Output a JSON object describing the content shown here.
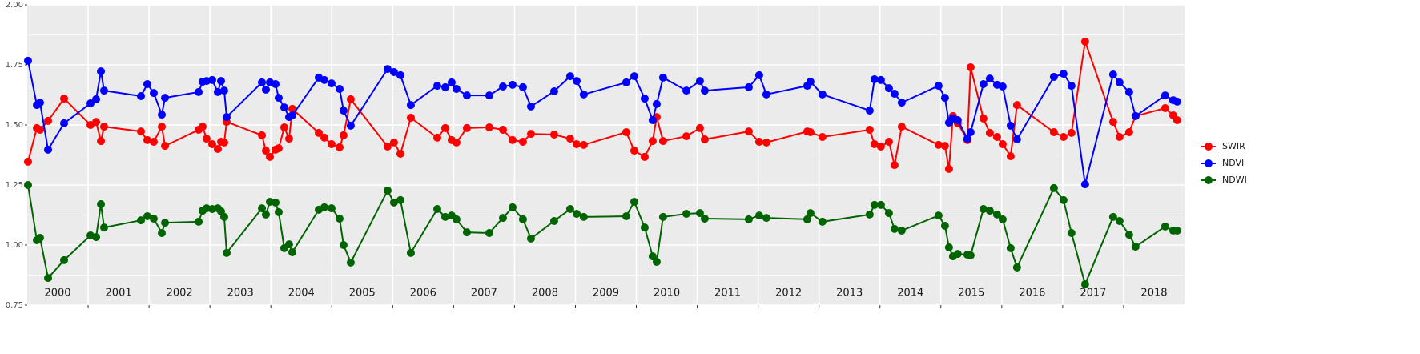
{
  "chart_data": {
    "type": "line",
    "x": [
      2000.013,
      2000.158,
      2000.21,
      2000.342,
      2000.605,
      2001.039,
      2001.131,
      2001.21,
      2001.262,
      2001.867,
      2001.972,
      2002.077,
      2002.209,
      2002.262,
      2002.814,
      2002.879,
      2002.945,
      2003.037,
      2003.129,
      2003.182,
      2003.234,
      2003.274,
      2003.853,
      2003.918,
      2003.984,
      2004.076,
      2004.128,
      2004.22,
      2004.299,
      2004.352,
      2004.786,
      2004.878,
      2004.996,
      2005.128,
      2005.193,
      2005.311,
      2005.916,
      2006.021,
      2006.127,
      2006.298,
      2006.732,
      2006.863,
      2006.968,
      2007.047,
      2007.218,
      2007.586,
      2007.81,
      2007.968,
      2008.138,
      2008.27,
      2008.651,
      2008.914,
      2009.02,
      2009.137,
      2009.834,
      2009.966,
      2010.137,
      2010.268,
      2010.334,
      2010.439,
      2010.821,
      2011.044,
      2011.123,
      2011.846,
      2012.017,
      2012.135,
      2012.806,
      2012.858,
      2013.055,
      2013.831,
      2013.91,
      2014.015,
      2014.147,
      2014.239,
      2014.357,
      2014.962,
      2015.067,
      2015.133,
      2015.198,
      2015.277,
      2015.435,
      2015.488,
      2015.698,
      2015.803,
      2015.922,
      2016.014,
      2016.145,
      2016.25,
      2016.855,
      2017.013,
      2017.144,
      2017.368,
      2017.828,
      2017.933,
      2018.091,
      2018.196,
      2018.682,
      2018.814,
      2018.879
    ],
    "series": [
      {
        "name": "SWIR",
        "color": "#ff0000",
        "values": [
          1.347,
          1.487,
          1.48,
          1.517,
          1.61,
          1.5,
          1.513,
          1.433,
          1.493,
          1.473,
          1.437,
          1.43,
          1.493,
          1.413,
          1.48,
          1.493,
          1.443,
          1.42,
          1.4,
          1.43,
          1.427,
          1.513,
          1.457,
          1.393,
          1.367,
          1.397,
          1.403,
          1.49,
          1.443,
          1.567,
          1.467,
          1.447,
          1.42,
          1.407,
          1.457,
          1.607,
          1.41,
          1.427,
          1.38,
          1.53,
          1.447,
          1.487,
          1.437,
          1.427,
          1.487,
          1.49,
          1.48,
          1.437,
          1.43,
          1.463,
          1.46,
          1.443,
          1.42,
          1.417,
          1.47,
          1.393,
          1.367,
          1.433,
          1.533,
          1.433,
          1.453,
          1.487,
          1.44,
          1.473,
          1.43,
          1.427,
          1.473,
          1.47,
          1.45,
          1.48,
          1.42,
          1.41,
          1.43,
          1.333,
          1.493,
          1.417,
          1.413,
          1.317,
          1.537,
          1.507,
          1.437,
          1.74,
          1.527,
          1.467,
          1.45,
          1.42,
          1.37,
          1.583,
          1.47,
          1.45,
          1.467,
          1.847,
          1.513,
          1.45,
          1.47,
          1.537,
          1.57,
          1.54,
          1.52
        ]
      },
      {
        "name": "NDVI",
        "color": "#0000ff",
        "values": [
          1.767,
          1.583,
          1.593,
          1.397,
          1.507,
          1.59,
          1.607,
          1.723,
          1.643,
          1.62,
          1.67,
          1.633,
          1.543,
          1.613,
          1.637,
          1.68,
          1.683,
          1.687,
          1.637,
          1.683,
          1.643,
          1.533,
          1.677,
          1.647,
          1.677,
          1.67,
          1.613,
          1.573,
          1.533,
          1.54,
          1.697,
          1.687,
          1.673,
          1.65,
          1.56,
          1.497,
          1.733,
          1.72,
          1.707,
          1.583,
          1.663,
          1.657,
          1.677,
          1.65,
          1.623,
          1.623,
          1.66,
          1.667,
          1.657,
          1.577,
          1.64,
          1.703,
          1.683,
          1.627,
          1.677,
          1.703,
          1.61,
          1.52,
          1.587,
          1.697,
          1.643,
          1.683,
          1.643,
          1.657,
          1.707,
          1.627,
          1.663,
          1.68,
          1.627,
          1.56,
          1.69,
          1.687,
          1.653,
          1.63,
          1.593,
          1.663,
          1.613,
          1.51,
          1.527,
          1.52,
          1.443,
          1.47,
          1.67,
          1.693,
          1.667,
          1.66,
          1.497,
          1.44,
          1.7,
          1.713,
          1.663,
          1.253,
          1.71,
          1.677,
          1.637,
          1.537,
          1.623,
          1.603,
          1.597
        ]
      },
      {
        "name": "NDWI",
        "color": "#006400",
        "values": [
          1.25,
          1.02,
          1.03,
          0.863,
          0.937,
          1.04,
          1.033,
          1.17,
          1.073,
          1.103,
          1.12,
          1.11,
          1.05,
          1.093,
          1.097,
          1.143,
          1.153,
          1.15,
          1.153,
          1.14,
          1.117,
          0.967,
          1.153,
          1.127,
          1.18,
          1.177,
          1.137,
          0.987,
          1.003,
          0.97,
          1.147,
          1.157,
          1.153,
          1.11,
          1.0,
          0.927,
          1.227,
          1.177,
          1.187,
          0.967,
          1.15,
          1.117,
          1.123,
          1.107,
          1.053,
          1.05,
          1.113,
          1.157,
          1.107,
          1.027,
          1.1,
          1.15,
          1.13,
          1.117,
          1.12,
          1.18,
          1.073,
          0.953,
          0.93,
          1.117,
          1.13,
          1.133,
          1.11,
          1.107,
          1.123,
          1.113,
          1.107,
          1.133,
          1.097,
          1.127,
          1.167,
          1.167,
          1.133,
          1.067,
          1.06,
          1.123,
          1.08,
          0.99,
          0.953,
          0.963,
          0.96,
          0.957,
          1.15,
          1.143,
          1.127,
          1.107,
          0.987,
          0.907,
          1.237,
          1.187,
          1.05,
          0.837,
          1.117,
          1.1,
          1.043,
          0.993,
          1.077,
          1.06,
          1.06
        ]
      }
    ],
    "xlim": [
      2000,
      2019
    ],
    "xticks": [
      {
        "value": 2000.5,
        "label": "2000"
      },
      {
        "value": 2001.5,
        "label": "2001"
      },
      {
        "value": 2002.5,
        "label": "2002"
      },
      {
        "value": 2003.5,
        "label": "2003"
      },
      {
        "value": 2004.5,
        "label": "2004"
      },
      {
        "value": 2005.5,
        "label": "2005"
      },
      {
        "value": 2006.5,
        "label": "2006"
      },
      {
        "value": 2007.5,
        "label": "2007"
      },
      {
        "value": 2008.5,
        "label": "2008"
      },
      {
        "value": 2009.5,
        "label": "2009"
      },
      {
        "value": 2010.5,
        "label": "2010"
      },
      {
        "value": 2011.5,
        "label": "2011"
      },
      {
        "value": 2012.5,
        "label": "2012"
      },
      {
        "value": 2013.5,
        "label": "2013"
      },
      {
        "value": 2014.5,
        "label": "2014"
      },
      {
        "value": 2015.5,
        "label": "2015"
      },
      {
        "value": 2016.5,
        "label": "2016"
      },
      {
        "value": 2017.5,
        "label": "2017"
      },
      {
        "value": 2018.5,
        "label": "2018"
      }
    ],
    "ylim": [
      0.75,
      2.0
    ],
    "yticks": [
      {
        "value": 0.75,
        "label": "0.75"
      },
      {
        "value": 1.0,
        "label": "1.00"
      },
      {
        "value": 1.25,
        "label": "1.25"
      },
      {
        "value": 1.5,
        "label": "1.50"
      },
      {
        "value": 1.75,
        "label": "1.75"
      },
      {
        "value": 2.0,
        "label": "2.00"
      }
    ],
    "grid": true,
    "legend": "right"
  }
}
